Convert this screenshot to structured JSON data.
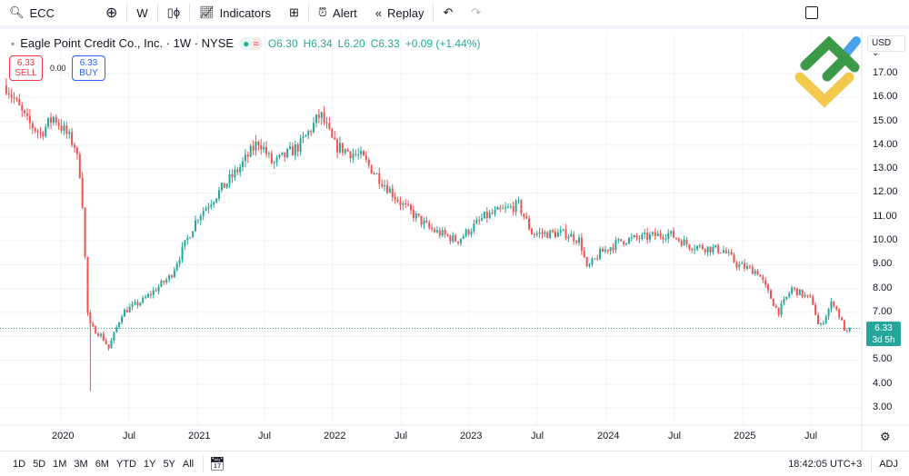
{
  "toolbar": {
    "symbol": "ECC",
    "interval": "W",
    "indicators": "Indicators",
    "alert": "Alert",
    "replay": "Replay"
  },
  "legend": {
    "title": "Eagle Point Credit Co., Inc. · 1W · NYSE",
    "open": "O6.30",
    "high": "H6.34",
    "low": "L6.20",
    "close": "C6.33",
    "change": "+0.09 (+1.44%)"
  },
  "trade": {
    "sell_price": "6.33",
    "sell_label": "SELL",
    "spread": "0.00",
    "buy_price": "6.33",
    "buy_label": "BUY"
  },
  "price_axis": {
    "currency": "USD",
    "ticks": [
      "17.00",
      "16.00",
      "15.00",
      "14.00",
      "13.00",
      "12.00",
      "11.00",
      "10.00",
      "9.00",
      "8.00",
      "7.00",
      "5.00",
      "4.00",
      "3.00"
    ],
    "last_price": "6.33",
    "countdown": "3d 5h"
  },
  "time_axis": {
    "ticks": [
      "2020",
      "Jul",
      "2021",
      "Jul",
      "2022",
      "Jul",
      "2023",
      "Jul",
      "2024",
      "Jul",
      "2025",
      "Jul"
    ]
  },
  "bottom": {
    "ranges": [
      "1D",
      "5D",
      "1M",
      "3M",
      "6M",
      "YTD",
      "1Y",
      "5Y",
      "All"
    ],
    "clock": "18:42:05 UTC+3",
    "adj": "ADJ"
  },
  "colors": {
    "up": "#26a69a",
    "down": "#ef5350",
    "accent": "#2962ff"
  },
  "chart_data": {
    "type": "candlestick",
    "title": "ECC 1W",
    "ylim": [
      2.5,
      18.5
    ],
    "last": 6.33,
    "approx_close_path": [
      [
        2019.6,
        16.5
      ],
      [
        2019.75,
        15
      ],
      [
        2019.85,
        14.5
      ],
      [
        2019.95,
        15.2
      ],
      [
        2020.1,
        14
      ],
      [
        2020.15,
        12.5
      ],
      [
        2020.2,
        6.5
      ],
      [
        2020.3,
        6
      ],
      [
        2020.35,
        5.5
      ],
      [
        2020.45,
        7
      ],
      [
        2020.6,
        7.5
      ],
      [
        2020.8,
        8.5
      ],
      [
        2021.0,
        11
      ],
      [
        2021.3,
        13
      ],
      [
        2021.45,
        14.2
      ],
      [
        2021.55,
        13.2
      ],
      [
        2021.75,
        14
      ],
      [
        2021.9,
        15.3
      ],
      [
        2022.0,
        14
      ],
      [
        2022.2,
        13.5
      ],
      [
        2022.35,
        12.5
      ],
      [
        2022.5,
        11.5
      ],
      [
        2022.7,
        10.5
      ],
      [
        2022.9,
        10
      ],
      [
        2023.1,
        11
      ],
      [
        2023.35,
        11.5
      ],
      [
        2023.45,
        10.3
      ],
      [
        2023.7,
        10.3
      ],
      [
        2023.8,
        10
      ],
      [
        2023.85,
        8.8
      ],
      [
        2023.95,
        9.5
      ],
      [
        2024.1,
        10
      ],
      [
        2024.45,
        10.3
      ],
      [
        2024.6,
        9.8
      ],
      [
        2024.85,
        9.6
      ],
      [
        2024.95,
        9
      ],
      [
        2025.1,
        8.7
      ],
      [
        2025.25,
        7
      ],
      [
        2025.35,
        8
      ],
      [
        2025.5,
        7.5
      ],
      [
        2025.55,
        6.3
      ],
      [
        2025.65,
        7.5
      ],
      [
        2025.75,
        6.1
      ],
      [
        2025.78,
        6.33
      ]
    ]
  }
}
